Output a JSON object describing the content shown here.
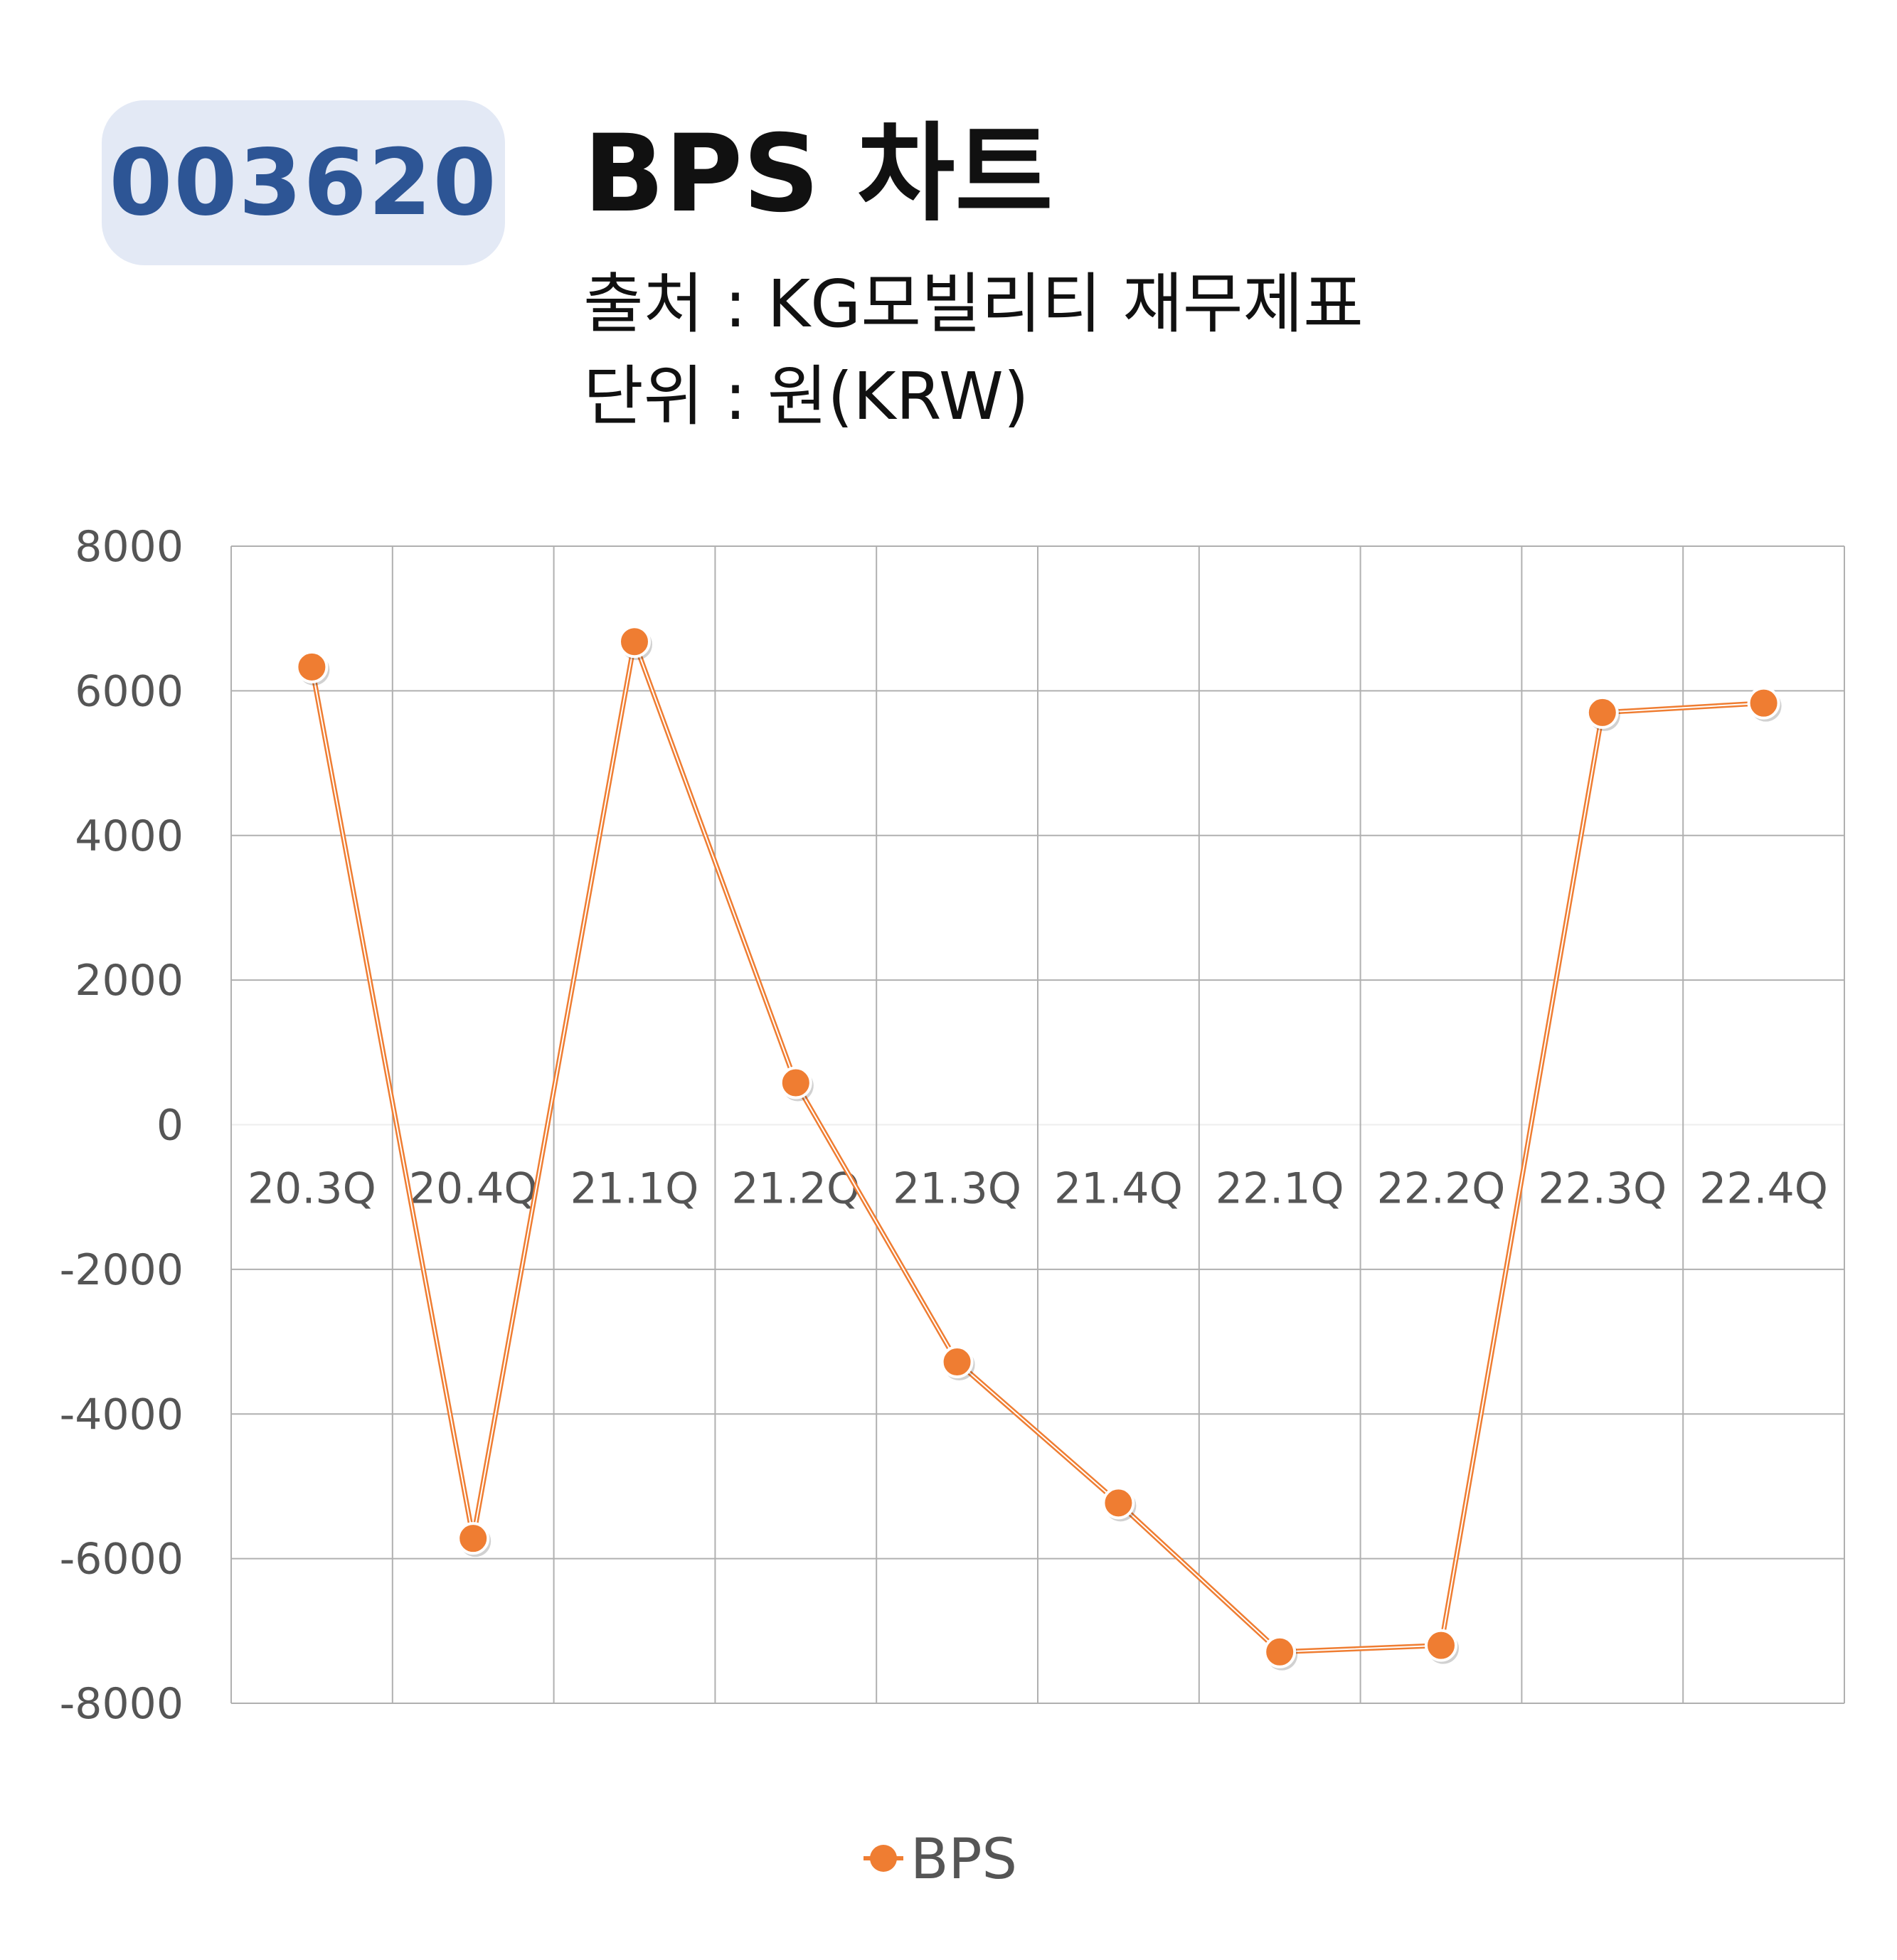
{
  "badge": {
    "code": "003620"
  },
  "header": {
    "title": "BPS 차트",
    "source": "출처 : KG모빌리티 재무제표",
    "unit": "단위 : 원(KRW)"
  },
  "colors": {
    "series": "#ef7d32",
    "badge_bg": "#e3e9f5",
    "badge_text": "#2d5595",
    "grid": "#b0b0b0"
  },
  "chart_data": {
    "type": "line",
    "categories": [
      "20.3Q",
      "20.4Q",
      "21.1Q",
      "21.2Q",
      "21.3Q",
      "21.4Q",
      "22.1Q",
      "22.2Q",
      "22.3Q",
      "22.4Q"
    ],
    "series": [
      {
        "name": "BPS",
        "values": [
          6330,
          -5720,
          6680,
          580,
          -3280,
          -5230,
          -7290,
          -7200,
          5700,
          5830
        ]
      }
    ],
    "y_ticks": [
      "8000",
      "6000",
      "4000",
      "2000",
      "0",
      "-2000",
      "-4000",
      "-6000",
      "-8000"
    ],
    "ylim": [
      -8000,
      8000
    ],
    "grid": true,
    "legend": "bottom-center"
  }
}
